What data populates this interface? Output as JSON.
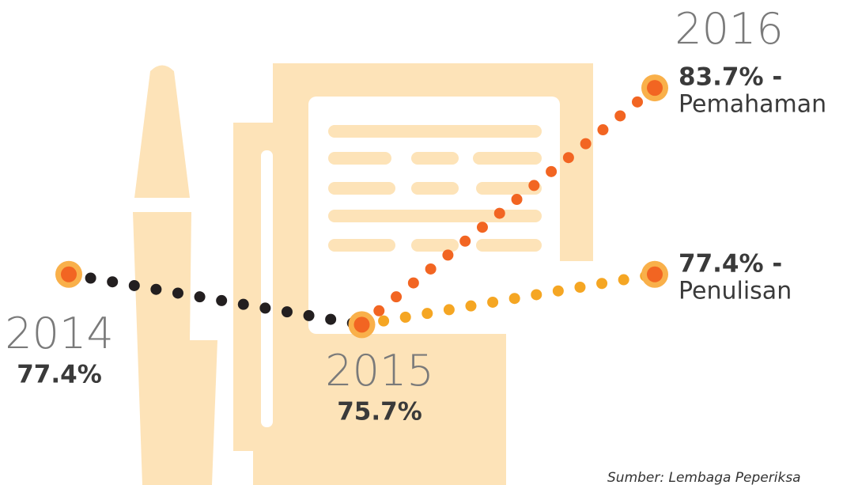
{
  "chart_data": {
    "type": "line",
    "categories": [
      "2014",
      "2015",
      "2016"
    ],
    "series": [
      {
        "color": "#231f20",
        "values": [
          77.4,
          75.7,
          null
        ],
        "value_labels": [
          "77.4%",
          "75.7%",
          null
        ]
      },
      {
        "name": "Pemahaman",
        "color": "#f26522",
        "values": [
          null,
          75.7,
          83.7
        ],
        "value_labels": [
          null,
          null,
          "83.7% -"
        ]
      },
      {
        "name": "Penulisan",
        "color": "#f5a623",
        "values": [
          null,
          75.7,
          77.4
        ],
        "value_labels": [
          null,
          null,
          "77.4% -"
        ]
      }
    ],
    "ylim": [
      71.7,
      85.6
    ],
    "source": "Sumber: Lembaga Peperiksa"
  }
}
